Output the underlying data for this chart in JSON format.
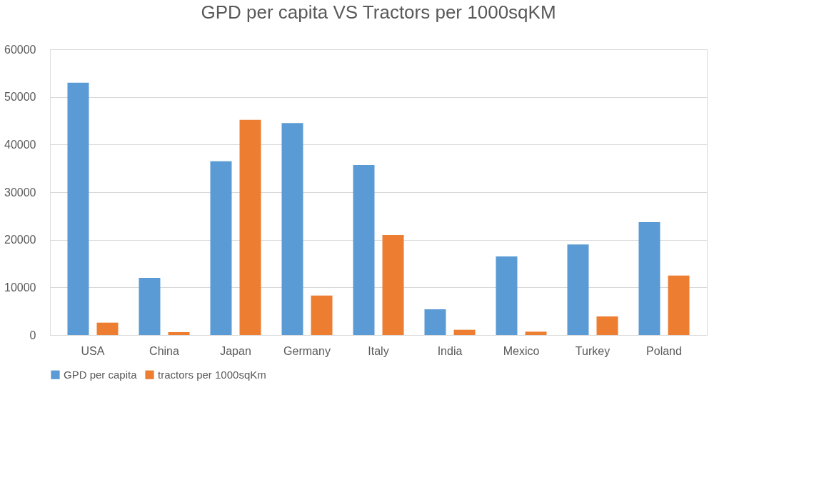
{
  "chart_data": {
    "type": "bar",
    "title": "GPD per capita VS Tractors per 1000sqKM",
    "categories": [
      "USA",
      "China",
      "Japan",
      "Germany",
      "Italy",
      "India",
      "Mexico",
      "Turkey",
      "Poland"
    ],
    "series": [
      {
        "name": "GPD per capita",
        "color": "#5b9bd5",
        "values": [
          53000,
          12000,
          36500,
          44500,
          35700,
          5400,
          16500,
          19000,
          23700
        ]
      },
      {
        "name": "tractors per 1000sqKm",
        "color": "#ed7d31",
        "values": [
          2600,
          600,
          45200,
          8300,
          21000,
          1100,
          700,
          3900,
          12500
        ]
      }
    ],
    "ylim": [
      0,
      60000
    ],
    "yticks": [
      0,
      10000,
      20000,
      30000,
      40000,
      50000,
      60000
    ],
    "grid": "y",
    "legend": "bottom"
  }
}
